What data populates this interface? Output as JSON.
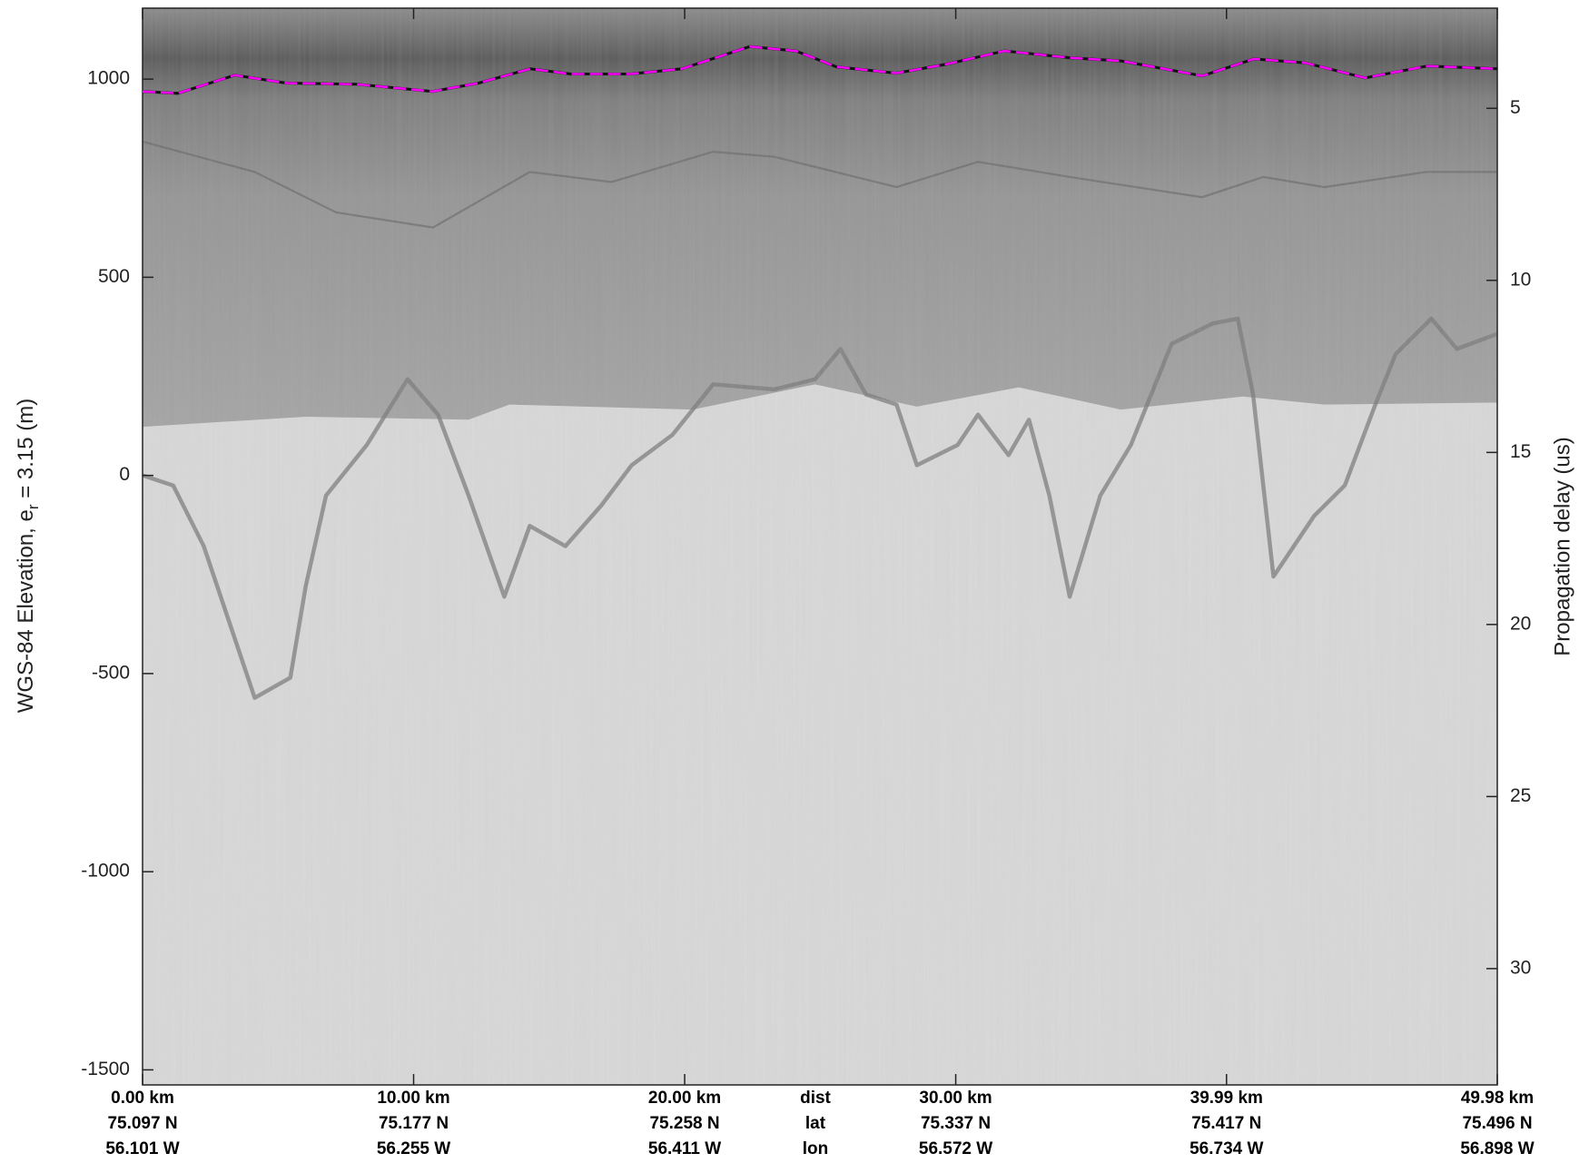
{
  "chart_data": {
    "type": "echogram",
    "ylabel": "WGS-84 Elevation, e",
    "ylabel_sub": "r",
    "ylabel_end": " = 3.15 (m)",
    "y2label": "Propagation delay (us)",
    "xlabel": "dist",
    "xlim": [
      0,
      49.98
    ],
    "xticks": [
      {
        "value": 0,
        "label": "0.00 km"
      },
      {
        "value": 10,
        "label": "10.00 km"
      },
      {
        "value": 20,
        "label": "20.00 km"
      },
      {
        "value": 30,
        "label": "30.00 km"
      },
      {
        "value": 39.99,
        "label": "39.99 km"
      },
      {
        "value": 49.98,
        "label": "49.98 km"
      }
    ],
    "xtick_rows": [
      {
        "name": "lat",
        "labels": [
          "75.097 N",
          "75.177 N",
          "75.258 N",
          "75.337 N",
          "75.417 N",
          "75.496 N"
        ]
      },
      {
        "name": "lon",
        "labels": [
          "56.101 W",
          "56.255 W",
          "56.411 W",
          "56.572 W",
          "56.734 W",
          "56.898 W"
        ]
      }
    ],
    "ylim": [
      -1538,
      1179
    ],
    "yticks": [
      -1500,
      -1000,
      -500,
      0,
      500,
      1000
    ],
    "y2lim": [
      33.38,
      2.09
    ],
    "y2ticks": [
      5,
      10,
      15,
      20,
      25,
      30
    ],
    "series": [
      {
        "color": "#ff00ff",
        "x": [
          0,
          1.3,
          3.4,
          5.3,
          7.9,
          10.7,
          12.4,
          14.3,
          15.8,
          18.0,
          19.9,
          22.4,
          24.1,
          25.6,
          27.8,
          29.7,
          31.8,
          34.2,
          36.1,
          39.1,
          41.0,
          42.9,
          45.1,
          47.4,
          49.98
        ],
        "values": [
          969,
          964,
          1010,
          990,
          987,
          969,
          990,
          1026,
          1013,
          1013,
          1026,
          1082,
          1071,
          1031,
          1015,
          1038,
          1071,
          1054,
          1046,
          1008,
          1051,
          1041,
          1003,
          1033,
          1026
        ]
      }
    ]
  }
}
